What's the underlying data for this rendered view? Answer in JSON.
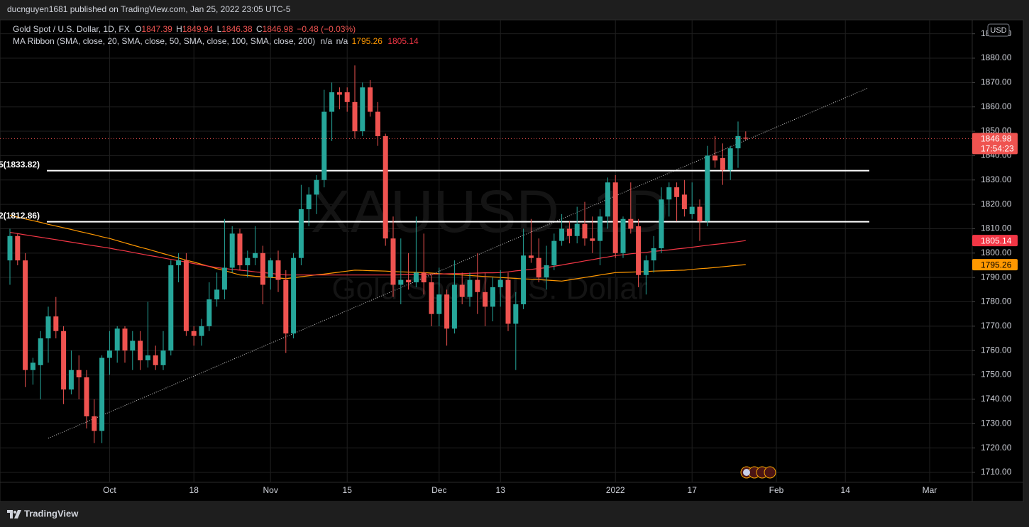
{
  "top_bar": {
    "text": "ducnguyen1681 published on TradingView.com, Jan 25, 2022 23:05 UTC-5"
  },
  "footer": {
    "brand": "TradingView"
  },
  "chart_data": {
    "type": "candlestick",
    "symbol": "Gold Spot / U.S. Dollar, 1D, FX",
    "ohlc_labels": [
      "O",
      "H",
      "L",
      "C"
    ],
    "change": "−0.48 (−0.03%)",
    "indicator": "MA Ribbon (SMA, close, 20, SMA, close, 50, SMA, close, 100, SMA, close, 200)",
    "indicator_na": [
      "n/a",
      "n/a"
    ],
    "watermark": [
      "XAUUSD, 1D",
      "Gold Spot / U.S. Dollar"
    ],
    "currency": "USD",
    "countdown": "17:54:23",
    "up_color": "#26a69a",
    "down_color": "#ef5350",
    "grid": true,
    "ylim": [
      1705.92,
      1895.72
    ],
    "yticks": [
      {
        "value": 1710,
        "label": "1710.00"
      },
      {
        "value": 1720,
        "label": "1720.00"
      },
      {
        "value": 1730,
        "label": "1730.00"
      },
      {
        "value": 1740,
        "label": "1740.00"
      },
      {
        "value": 1750,
        "label": "1750.00"
      },
      {
        "value": 1760,
        "label": "1760.00"
      },
      {
        "value": 1770,
        "label": "1770.00"
      },
      {
        "value": 1780,
        "label": "1780.00"
      },
      {
        "value": 1790,
        "label": "1790.00"
      },
      {
        "value": 1800,
        "label": "1800.00"
      },
      {
        "value": 1810,
        "label": "1810.00"
      },
      {
        "value": 1820,
        "label": "1820.00"
      },
      {
        "value": 1830,
        "label": "1830.00"
      },
      {
        "value": 1840,
        "label": "1840.00"
      },
      {
        "value": 1850,
        "label": "1850.00"
      },
      {
        "value": 1860,
        "label": "1860.00"
      },
      {
        "value": 1870,
        "label": "1870.00"
      },
      {
        "value": 1880,
        "label": "1880.00"
      },
      {
        "value": 1890,
        "label": "1890.00"
      }
    ],
    "categories": [
      null,
      null,
      null,
      null,
      null,
      null,
      null,
      null,
      null,
      null,
      null,
      null,
      null,
      "Oct",
      null,
      null,
      null,
      null,
      null,
      null,
      null,
      null,
      null,
      null,
      "18",
      null,
      null,
      null,
      null,
      null,
      null,
      null,
      null,
      null,
      "Nov",
      null,
      null,
      null,
      null,
      null,
      null,
      null,
      null,
      null,
      "15",
      null,
      null,
      null,
      null,
      null,
      null,
      null,
      null,
      null,
      null,
      null,
      "Dec",
      null,
      null,
      null,
      null,
      null,
      null,
      null,
      "13",
      null,
      null,
      null,
      null,
      null,
      null,
      null,
      null,
      null,
      null,
      null,
      null,
      null,
      null,
      "2022",
      null,
      null,
      null,
      null,
      null,
      null,
      null,
      null,
      null,
      "17",
      null,
      null,
      null,
      null,
      null,
      null,
      null,
      null,
      null,
      null,
      "Feb",
      null,
      null,
      null,
      null,
      null,
      null,
      null,
      null,
      "14",
      null,
      null,
      null,
      null,
      null,
      null,
      null,
      null,
      null,
      null,
      "Mar"
    ],
    "open": [
      1797,
      1807,
      1797,
      1752,
      1754,
      1765,
      1774,
      1768,
      1744,
      1752,
      1749,
      1733,
      1727,
      1757,
      1760,
      1769,
      1760,
      1764,
      1756,
      1758,
      1754,
      1760,
      1795,
      1797,
      1768,
      1766,
      1770,
      1781,
      1785,
      1794,
      1808,
      1795,
      1798,
      1800,
      1790,
      1797,
      1789,
      1767,
      1798,
      1818,
      1824,
      1830,
      1858,
      1866,
      1866,
      1862,
      1850,
      1868,
      1858,
      1848,
      1806,
      1787,
      1789,
      1788,
      1792,
      1788,
      1775,
      1783,
      1769,
      1787,
      1782,
      1789,
      1784,
      1778,
      1786,
      1789,
      1771,
      1779,
      1799,
      1798,
      1790,
      1795,
      1805,
      1810,
      1807,
      1812,
      1806,
      1805,
      1815,
      1829,
      1800,
      1814,
      1811,
      1791,
      1797,
      1802,
      1822,
      1827,
      1824,
      1816,
      1819,
      1813,
      1840,
      1839,
      1834,
      1843,
      1847.39,
      null,
      null,
      null,
      null,
      null,
      null,
      null,
      null,
      null,
      null,
      null,
      null,
      null,
      null,
      null,
      null,
      null,
      null,
      null,
      null,
      null,
      null,
      null,
      null
    ],
    "high": [
      1810,
      1808,
      1800,
      1757,
      1768,
      1778,
      1782,
      1770,
      1760,
      1758,
      1752,
      1740,
      1758,
      1768,
      1770,
      1770,
      1768,
      1768,
      1780,
      1762,
      1768,
      1797,
      1800,
      1800,
      1770,
      1773,
      1788,
      1792,
      1814,
      1811,
      1810,
      1801,
      1811,
      1803,
      1798,
      1801,
      1793,
      1800,
      1828,
      1827,
      1832,
      1867,
      1870,
      1868,
      1868,
      1877,
      1870,
      1871,
      1862,
      1849,
      1815,
      1806,
      1800,
      1815,
      1808,
      1791,
      1794,
      1785,
      1797,
      1792,
      1792,
      1800,
      1792,
      1790,
      1793,
      1792,
      1784,
      1810,
      1814,
      1806,
      1803,
      1808,
      1816,
      1813,
      1819,
      1821,
      1815,
      1818,
      1831,
      1832,
      1815,
      1829,
      1814,
      1799,
      1807,
      1827,
      1829,
      1829,
      1830,
      1829,
      1822,
      1844,
      1848,
      1845,
      1844,
      1854,
      1849.94,
      null,
      null,
      null,
      null,
      null,
      null,
      null,
      null,
      null,
      null,
      null,
      null,
      null,
      null,
      null,
      null,
      null,
      null,
      null,
      null,
      null,
      null,
      null,
      null
    ],
    "low": [
      1787,
      1795,
      1745,
      1746,
      1740,
      1755,
      1765,
      1738,
      1742,
      1740,
      1728,
      1722,
      1722,
      1750,
      1755,
      1755,
      1752,
      1752,
      1753,
      1752,
      1752,
      1758,
      1788,
      1766,
      1762,
      1762,
      1768,
      1778,
      1781,
      1792,
      1793,
      1790,
      1795,
      1779,
      1785,
      1784,
      1759,
      1765,
      1795,
      1811,
      1816,
      1827,
      1846,
      1859,
      1858,
      1847,
      1848,
      1856,
      1844,
      1803,
      1782,
      1779,
      1785,
      1786,
      1783,
      1770,
      1770,
      1762,
      1767,
      1779,
      1778,
      1775,
      1770,
      1772,
      1778,
      1768,
      1752,
      1777,
      1796,
      1788,
      1785,
      1793,
      1803,
      1804,
      1804,
      1803,
      1800,
      1795,
      1810,
      1798,
      1798,
      1808,
      1786,
      1783,
      1792,
      1800,
      1815,
      1813,
      1815,
      1814,
      1805,
      1811,
      1835,
      1828,
      1830,
      1835,
      1846.38,
      null,
      null,
      null,
      null,
      null,
      null,
      null,
      null,
      null,
      null,
      null,
      null,
      null,
      null,
      null,
      null,
      null,
      null,
      null,
      null,
      null,
      null,
      null,
      null
    ],
    "close": [
      1807,
      1797,
      1752,
      1755,
      1765,
      1774,
      1768,
      1744,
      1752,
      1749,
      1733,
      1727,
      1757,
      1760,
      1769,
      1760,
      1764,
      1756,
      1758,
      1754,
      1760,
      1795,
      1797,
      1768,
      1766,
      1770,
      1781,
      1785,
      1794,
      1808,
      1795,
      1798,
      1800,
      1787,
      1797,
      1789,
      1767,
      1798,
      1818,
      1824,
      1830,
      1858,
      1866,
      1865,
      1862,
      1850,
      1868,
      1858,
      1848,
      1806,
      1787,
      1789,
      1788,
      1792,
      1788,
      1775,
      1783,
      1769,
      1787,
      1782,
      1789,
      1784,
      1778,
      1786,
      1789,
      1771,
      1779,
      1799,
      1798,
      1790,
      1795,
      1805,
      1810,
      1807,
      1812,
      1806,
      1805,
      1815,
      1829,
      1800,
      1814,
      1810,
      1791,
      1797,
      1802,
      1822,
      1827,
      1823,
      1818,
      1819,
      1813,
      1840,
      1838,
      1834,
      1843,
      1848,
      1846.98,
      null,
      null,
      null,
      null,
      null,
      null,
      null,
      null,
      null,
      null,
      null,
      null,
      null,
      null,
      null,
      null,
      null,
      null,
      null,
      null,
      null,
      null,
      null,
      null
    ],
    "ma_lines": [
      {
        "color": "#ff9800",
        "values": [
          1815.5,
          1814.8,
          1814.0,
          1813.3,
          1812.6,
          1811.8,
          1811.1,
          1810.4,
          1809.7,
          1808.9,
          1808.2,
          1807.5,
          1806.7,
          1806.0,
          1805.1,
          1804.2,
          1803.3,
          1802.4,
          1801.6,
          1800.7,
          1799.8,
          1798.9,
          1798.0,
          1797.1,
          1796.3,
          1795.4,
          1794.5,
          1793.6,
          1792.8,
          1791.9,
          1791.0,
          1790.8,
          1790.5,
          1790.3,
          1790.0,
          1789.8,
          1789.5,
          1789.9,
          1790.3,
          1790.7,
          1791.1,
          1791.4,
          1791.8,
          1792.2,
          1792.6,
          1793.0,
          1792.9,
          1792.8,
          1792.7,
          1792.6,
          1792.4,
          1792.3,
          1792.2,
          1792.1,
          1792.0,
          1791.8,
          1791.6,
          1791.4,
          1791.2,
          1791.0,
          1790.8,
          1790.6,
          1790.4,
          1790.2,
          1790.0,
          1789.8,
          1789.6,
          1789.4,
          1789.3,
          1789.1,
          1788.9,
          1788.7,
          1788.5,
          1789.0,
          1789.5,
          1790.0,
          1790.5,
          1791.0,
          1791.5,
          1792.0,
          1792.1,
          1792.2,
          1792.3,
          1792.4,
          1792.6,
          1792.7,
          1792.8,
          1792.9,
          1793.0,
          1793.3,
          1793.6,
          1793.8,
          1794.1,
          1794.4,
          1794.7,
          1795.0,
          1795.26,
          null,
          null,
          null,
          null,
          null,
          null,
          null,
          null,
          null,
          null,
          null,
          null,
          null,
          null,
          null,
          null,
          null,
          null,
          null,
          null,
          null,
          null,
          null,
          null
        ]
      },
      {
        "color": "#f23645",
        "values": [
          1808.5,
          1808.0,
          1807.5,
          1807.0,
          1806.5,
          1806.0,
          1805.5,
          1805.0,
          1804.5,
          1804.0,
          1803.5,
          1803.0,
          1802.5,
          1802.0,
          1801.4,
          1800.9,
          1800.3,
          1799.7,
          1799.1,
          1798.6,
          1798.0,
          1797.4,
          1796.9,
          1796.3,
          1795.7,
          1795.1,
          1794.6,
          1794.0,
          1793.7,
          1793.3,
          1793.0,
          1792.7,
          1792.3,
          1792.0,
          1791.7,
          1791.3,
          1791.0,
          1791.0,
          1791.0,
          1791.0,
          1791.0,
          1791.0,
          1791.0,
          1791.0,
          1791.0,
          1791.0,
          1791.0,
          1791.0,
          1791.0,
          1791.0,
          1791.0,
          1791.1,
          1791.1,
          1791.2,
          1791.3,
          1791.4,
          1791.4,
          1791.5,
          1791.6,
          1791.6,
          1791.7,
          1791.8,
          1791.9,
          1791.9,
          1792.0,
          1792.3,
          1792.7,
          1793.0,
          1793.3,
          1793.7,
          1794.0,
          1794.6,
          1795.1,
          1795.7,
          1796.2,
          1796.8,
          1797.3,
          1797.9,
          1798.4,
          1799.0,
          1799.3,
          1799.7,
          1800.0,
          1800.3,
          1800.7,
          1801.0,
          1801.3,
          1801.7,
          1802.0,
          1802.4,
          1802.8,
          1803.2,
          1803.6,
          1803.9,
          1804.3,
          1804.7,
          1805.14,
          null,
          null,
          null,
          null,
          null,
          null,
          null,
          null,
          null,
          null,
          null,
          null,
          null,
          null,
          null,
          null,
          null,
          null,
          null,
          null,
          null,
          null,
          null,
          null
        ]
      }
    ],
    "levels": [
      {
        "label": "5(1833.82)",
        "value": 1833.82
      },
      {
        "label": "2(1812.86)",
        "value": 1812.86
      }
    ],
    "trendline": {
      "x": [
        5,
        112
      ],
      "values": [
        1724,
        1867.8
      ]
    }
  }
}
